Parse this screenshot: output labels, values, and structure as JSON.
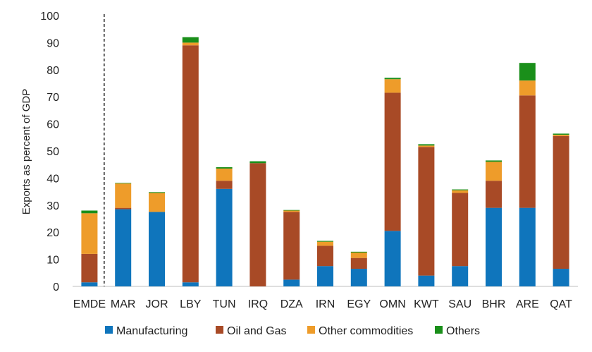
{
  "chart_data": {
    "type": "bar",
    "stacked": true,
    "title": "",
    "xlabel": "",
    "ylabel": "Exports as percent of GDP",
    "ylim": [
      0,
      100
    ],
    "yticks": [
      0,
      10,
      20,
      30,
      40,
      50,
      60,
      70,
      80,
      90,
      100
    ],
    "grid": false,
    "legend_position": "bottom",
    "separator_after": "EMDE",
    "categories": [
      "EMDE",
      "MAR",
      "JOR",
      "LBY",
      "TUN",
      "IRQ",
      "DZA",
      "IRN",
      "EGY",
      "OMN",
      "KWT",
      "SAU",
      "BHR",
      "ARE",
      "QAT"
    ],
    "series": [
      {
        "name": "Manufacturing",
        "color": "#0F75BC",
        "values": [
          1.5,
          28.5,
          27.5,
          1.5,
          36,
          0,
          2.5,
          7.5,
          6.5,
          20.5,
          4,
          7.5,
          29,
          29,
          6.5
        ]
      },
      {
        "name": "Oil and Gas",
        "color": "#A84A26",
        "values": [
          10.5,
          0.5,
          0,
          87.5,
          3,
          45.5,
          25,
          7.5,
          4,
          51,
          47.5,
          27,
          10,
          41.5,
          49
        ]
      },
      {
        "name": "Other commodities",
        "color": "#EE9C2A",
        "values": [
          15,
          9,
          7,
          1,
          4.5,
          0,
          0.5,
          1.5,
          2,
          5,
          0.5,
          1,
          7,
          5.5,
          0.5
        ]
      },
      {
        "name": "Others",
        "color": "#1A8F1A",
        "values": [
          1,
          0.2,
          0.3,
          2,
          0.5,
          0.7,
          0.2,
          0.3,
          0.3,
          0.5,
          0.5,
          0.3,
          0.5,
          6.5,
          0.4
        ]
      }
    ]
  }
}
